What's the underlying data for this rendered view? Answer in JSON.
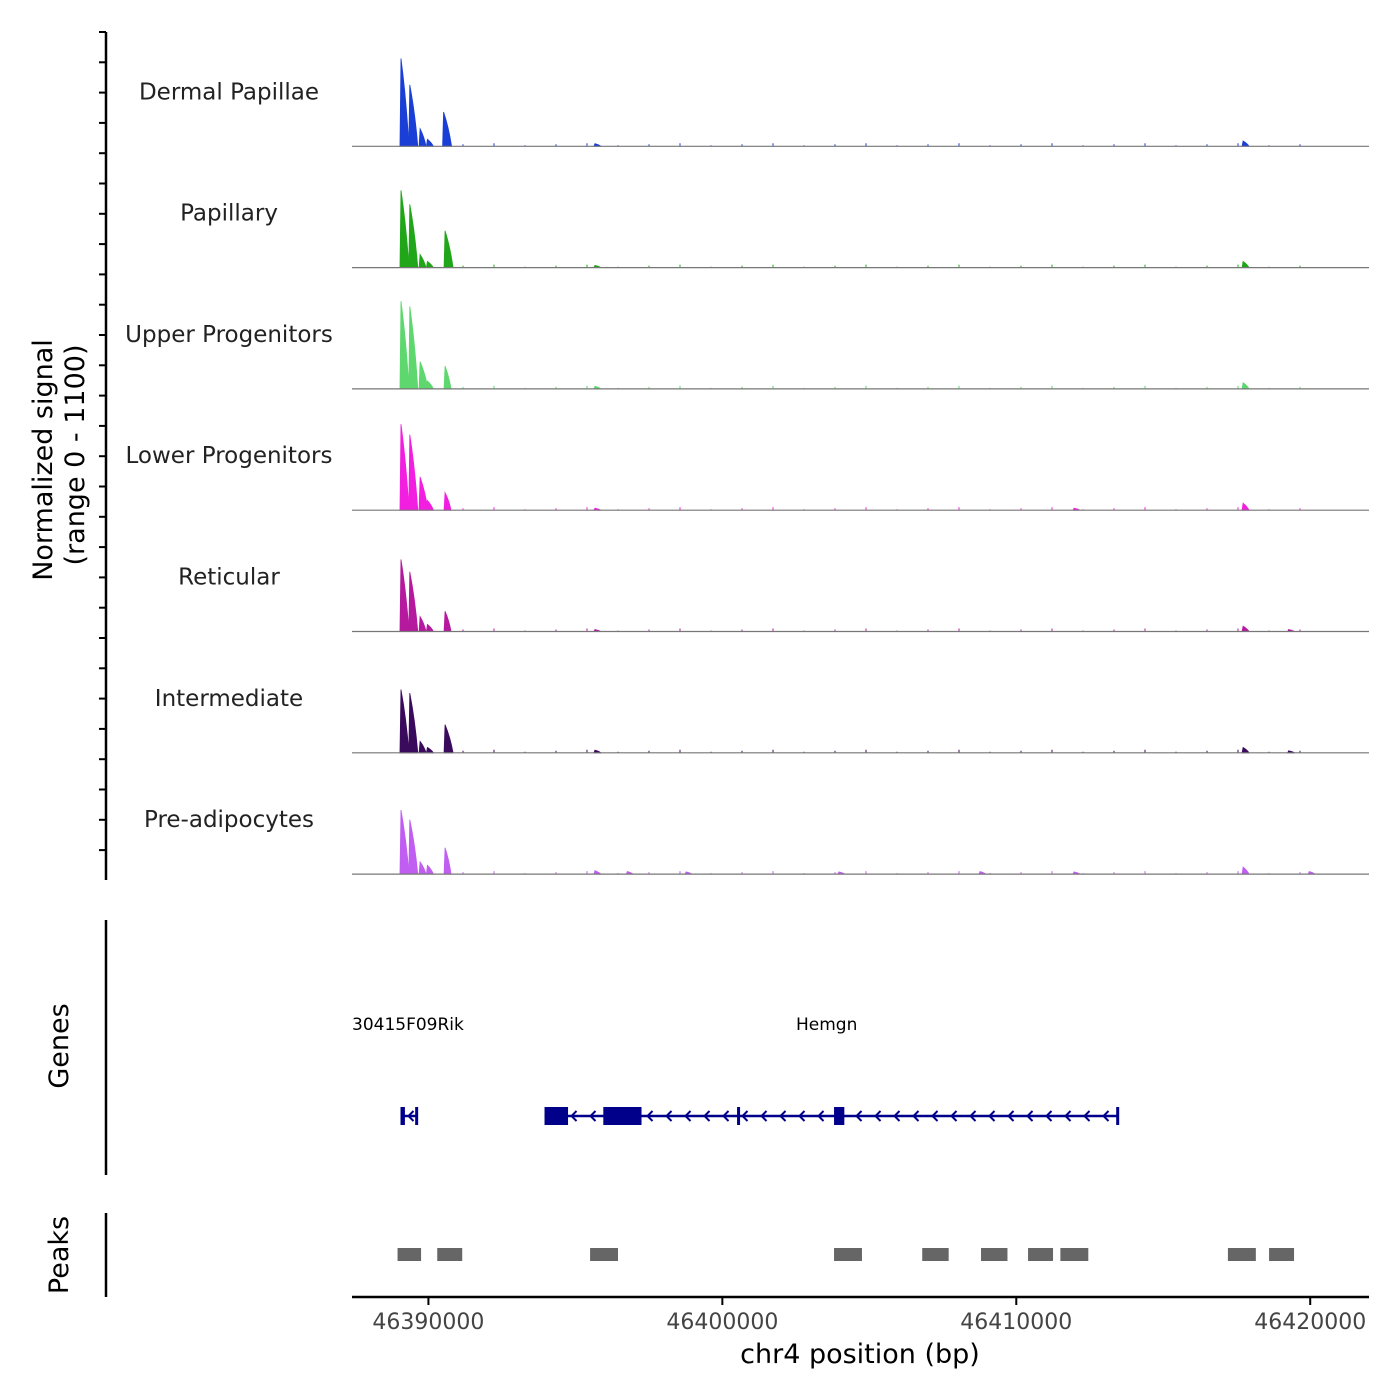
{
  "chart_data": {
    "type": "area",
    "title": "",
    "y_title_line1": "Normalized signal",
    "y_title_line2": "(range 0 - 1100)",
    "ylim": [
      0,
      1100
    ],
    "genes_label": "Genes",
    "peaks_label": "Peaks",
    "xlabel": "chr4 position (bp)",
    "xlim": [
      46387400,
      46422000
    ],
    "x_ticks": [
      46390000,
      46400000,
      46410000,
      46420000
    ],
    "x_tick_labels": [
      "46390000",
      "46400000",
      "46410000",
      "46420000"
    ],
    "tracks": [
      {
        "name": "Dermal Papillae",
        "color": "#1a3fd6",
        "peaks": [
          [
            46389100,
            1000
          ],
          [
            46389400,
            700
          ],
          [
            46389750,
            200
          ],
          [
            46390000,
            80
          ],
          [
            46390550,
            390
          ],
          [
            46395700,
            30
          ],
          [
            46417750,
            60
          ]
        ]
      },
      {
        "name": "Papillary",
        "color": "#21a61a",
        "peaks": [
          [
            46389100,
            880
          ],
          [
            46389400,
            720
          ],
          [
            46389750,
            150
          ],
          [
            46390000,
            70
          ],
          [
            46390600,
            420
          ],
          [
            46395700,
            25
          ],
          [
            46417750,
            70
          ]
        ]
      },
      {
        "name": "Upper Progenitors",
        "color": "#5ed86e",
        "peaks": [
          [
            46389100,
            1000
          ],
          [
            46389400,
            940
          ],
          [
            46389750,
            310
          ],
          [
            46390000,
            90
          ],
          [
            46390600,
            260
          ],
          [
            46395700,
            30
          ],
          [
            46417750,
            70
          ]
        ]
      },
      {
        "name": "Lower Progenitors",
        "color": "#f21fe0",
        "peaks": [
          [
            46389100,
            980
          ],
          [
            46389400,
            860
          ],
          [
            46389750,
            380
          ],
          [
            46390000,
            110
          ],
          [
            46390600,
            200
          ],
          [
            46395700,
            20
          ],
          [
            46412000,
            20
          ],
          [
            46417750,
            80
          ]
        ]
      },
      {
        "name": "Reticular",
        "color": "#b5199e",
        "peaks": [
          [
            46389100,
            820
          ],
          [
            46389400,
            680
          ],
          [
            46389750,
            170
          ],
          [
            46390000,
            80
          ],
          [
            46390600,
            230
          ],
          [
            46395700,
            20
          ],
          [
            46417750,
            60
          ],
          [
            46419300,
            20
          ]
        ]
      },
      {
        "name": "Intermediate",
        "color": "#3a0a5c",
        "peaks": [
          [
            46389100,
            720
          ],
          [
            46389400,
            680
          ],
          [
            46389750,
            130
          ],
          [
            46390000,
            60
          ],
          [
            46390600,
            320
          ],
          [
            46395700,
            30
          ],
          [
            46417750,
            60
          ],
          [
            46419300,
            15
          ]
        ]
      },
      {
        "name": "Pre-adipocytes",
        "color": "#c15ef2",
        "peaks": [
          [
            46389100,
            730
          ],
          [
            46389400,
            620
          ],
          [
            46389750,
            140
          ],
          [
            46390000,
            100
          ],
          [
            46390600,
            300
          ],
          [
            46395700,
            40
          ],
          [
            46396800,
            30
          ],
          [
            46398800,
            25
          ],
          [
            46404000,
            25
          ],
          [
            46408800,
            30
          ],
          [
            46412000,
            25
          ],
          [
            46417750,
            80
          ],
          [
            46420000,
            30
          ]
        ]
      }
    ],
    "genes": [
      {
        "name": "30415F09Rik",
        "strand": "-",
        "start": 46389050,
        "end": 46389600,
        "exons": [
          [
            46389050,
            46389200
          ]
        ]
      },
      {
        "name": "Hemgn",
        "strand": "-",
        "start": 46393950,
        "end": 46413450,
        "exons": [
          [
            46393950,
            46394750
          ],
          [
            46395950,
            46397250
          ],
          [
            46400500,
            46400600
          ],
          [
            46403800,
            46404150
          ]
        ]
      }
    ],
    "peaks": [
      [
        46388950,
        46389750
      ],
      [
        46390300,
        46391150
      ],
      [
        46395500,
        46396450
      ],
      [
        46403800,
        46404750
      ],
      [
        46406800,
        46407700
      ],
      [
        46408800,
        46409700
      ],
      [
        46410400,
        46411250
      ],
      [
        46411500,
        46412450
      ],
      [
        46417200,
        46418150
      ],
      [
        46418600,
        46419450
      ]
    ]
  }
}
